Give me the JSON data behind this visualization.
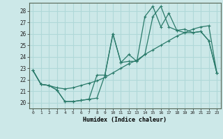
{
  "xlabel": "Humidex (Indice chaleur)",
  "bg_color": "#cce8e8",
  "line_color": "#2a7a6a",
  "grid_color": "#b0d8d8",
  "xlim": [
    -0.5,
    23.5
  ],
  "ylim": [
    19.5,
    28.7
  ],
  "xticks": [
    0,
    1,
    2,
    3,
    4,
    5,
    6,
    7,
    8,
    9,
    10,
    11,
    12,
    13,
    14,
    15,
    16,
    17,
    18,
    19,
    20,
    21,
    22,
    23
  ],
  "yticks": [
    20,
    21,
    22,
    23,
    24,
    25,
    26,
    27,
    28
  ],
  "line1_x": [
    0,
    1,
    2,
    3,
    4,
    5,
    6,
    7,
    8,
    9,
    10,
    11,
    12,
    13,
    14,
    15,
    16,
    17,
    18,
    19,
    20,
    21,
    22,
    23
  ],
  "line1_y": [
    22.8,
    21.6,
    21.5,
    21.1,
    20.1,
    20.1,
    20.2,
    20.3,
    20.4,
    22.4,
    26.0,
    23.5,
    24.2,
    23.6,
    27.5,
    28.4,
    26.6,
    27.8,
    26.3,
    26.1,
    26.1,
    26.2,
    25.4,
    22.6
  ],
  "line2_x": [
    0,
    1,
    2,
    3,
    4,
    5,
    6,
    7,
    8,
    9,
    10,
    11,
    12,
    13,
    14,
    15,
    16,
    17,
    18,
    19,
    20,
    21,
    22,
    23
  ],
  "line2_y": [
    22.8,
    21.6,
    21.5,
    21.3,
    21.2,
    21.3,
    21.5,
    21.7,
    21.9,
    22.2,
    22.6,
    23.0,
    23.4,
    23.7,
    24.2,
    24.6,
    25.0,
    25.4,
    25.8,
    26.1,
    26.4,
    26.6,
    26.7,
    22.6
  ],
  "line3_x": [
    0,
    1,
    2,
    3,
    4,
    5,
    6,
    7,
    8,
    9,
    10,
    11,
    12,
    13,
    14,
    15,
    16,
    17,
    18,
    19,
    20,
    21,
    22,
    23
  ],
  "line3_y": [
    22.8,
    21.6,
    21.5,
    21.1,
    20.1,
    20.1,
    20.2,
    20.3,
    22.4,
    22.4,
    26.0,
    23.5,
    23.6,
    23.6,
    24.2,
    27.5,
    28.4,
    26.6,
    26.3,
    26.4,
    26.1,
    26.2,
    25.4,
    22.6
  ]
}
